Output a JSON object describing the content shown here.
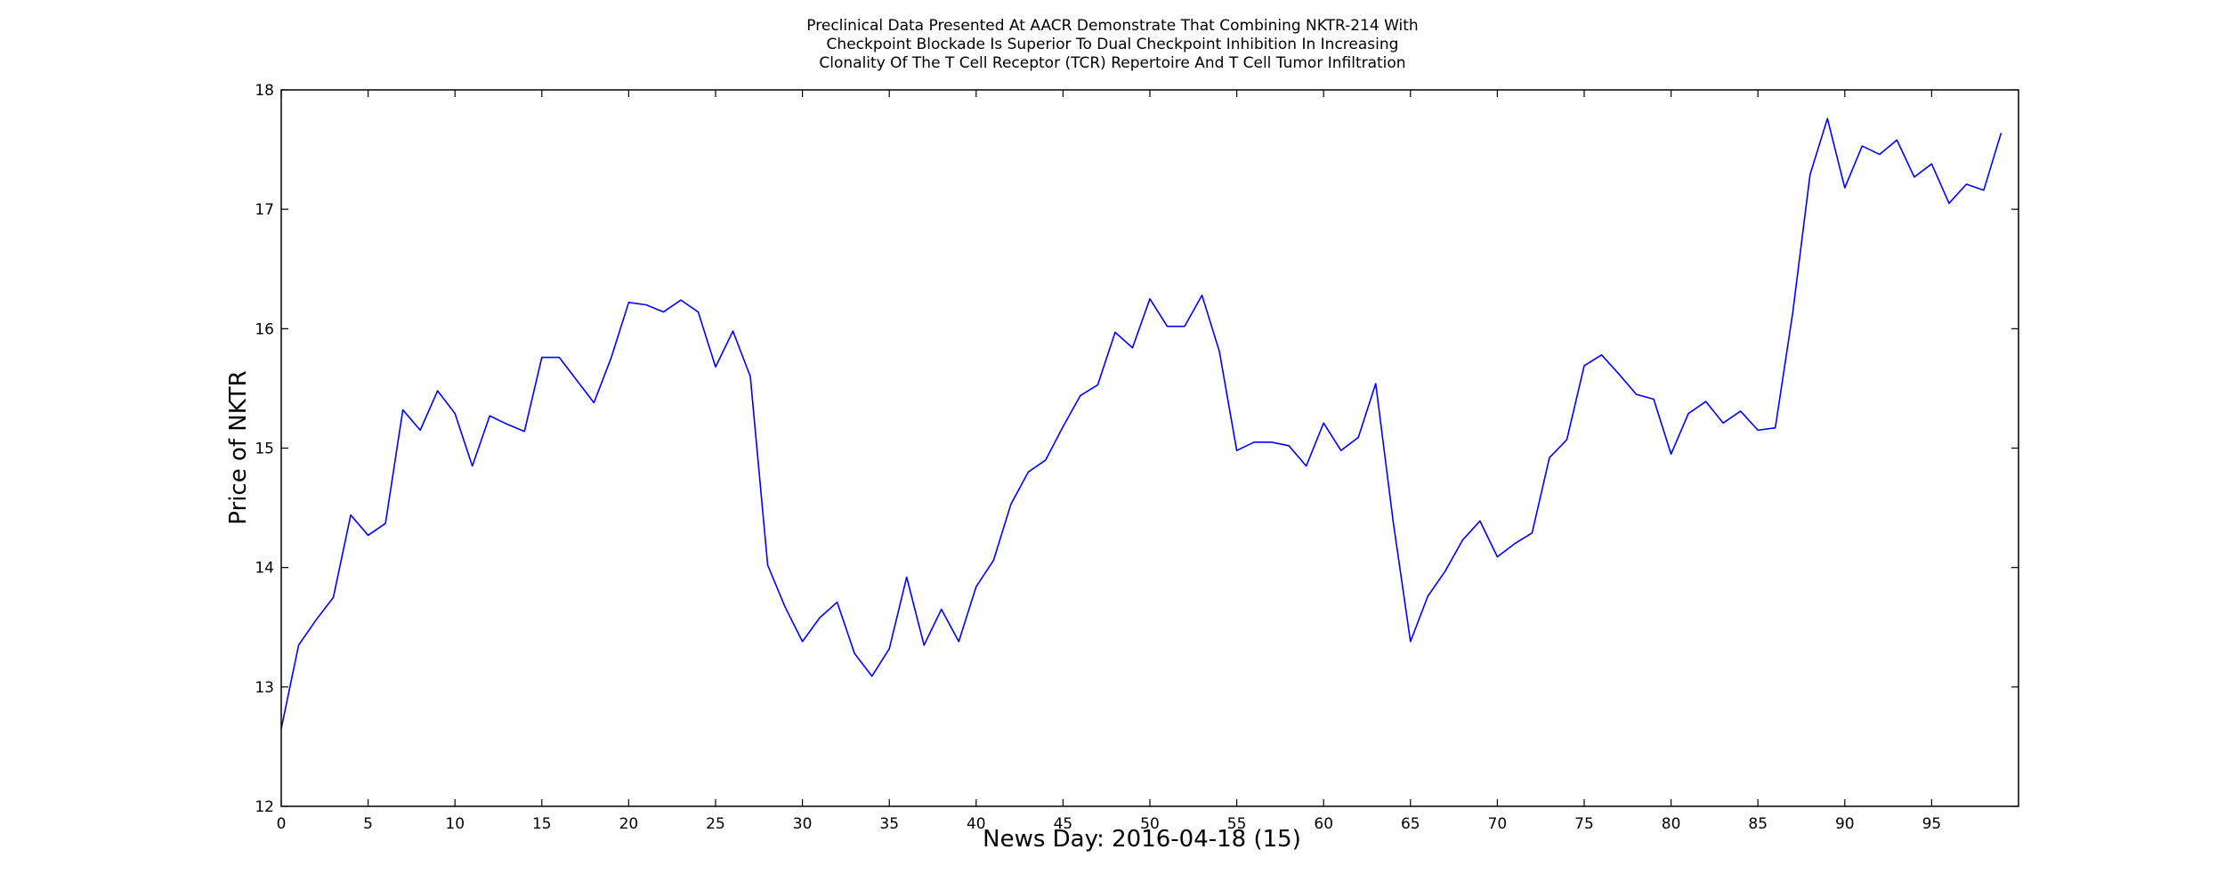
{
  "chart_data": {
    "type": "line",
    "title_lines": [
      "Preclinical Data Presented At AACR Demonstrate That Combining NKTR-214 With",
      "Checkpoint Blockade Is Superior To Dual Checkpoint Inhibition In Increasing",
      "Clonality Of The T Cell Receptor (TCR) Repertoire And T Cell Tumor Infiltration"
    ],
    "xlabel": "News Day: 2016-04-18 (15)",
    "ylabel": "Price of NKTR",
    "xlim": [
      0,
      100
    ],
    "ylim": [
      12,
      18
    ],
    "x_ticks": [
      0,
      5,
      10,
      15,
      20,
      25,
      30,
      35,
      40,
      45,
      50,
      55,
      60,
      65,
      70,
      75,
      80,
      85,
      90,
      95
    ],
    "x_tick_labels": [
      "0",
      "5",
      "10",
      "15",
      "20",
      "25",
      "30",
      "35",
      "40",
      "45",
      "50",
      "55",
      "60",
      "65",
      "70",
      "75",
      "80",
      "85",
      "90",
      "95"
    ],
    "y_ticks": [
      12,
      13,
      14,
      15,
      16,
      17,
      18
    ],
    "y_tick_labels": [
      "12",
      "13",
      "14",
      "15",
      "16",
      "17",
      "18"
    ],
    "grid": false,
    "line_color": "#0000ff",
    "series": [
      {
        "values": [
          12.65,
          13.35,
          13.56,
          13.75,
          14.44,
          14.27,
          14.37,
          15.32,
          15.15,
          15.48,
          15.29,
          14.85,
          15.27,
          15.2,
          15.14,
          15.76,
          15.76,
          15.57,
          15.38,
          15.76,
          16.22,
          16.2,
          16.14,
          16.24,
          16.14,
          15.68,
          15.98,
          15.6,
          14.02,
          13.67,
          13.38,
          13.58,
          13.71,
          13.28,
          13.09,
          13.32,
          13.92,
          13.35,
          13.65,
          13.38,
          13.84,
          14.06,
          14.53,
          14.8,
          14.9,
          15.18,
          15.44,
          15.53,
          15.97,
          15.84,
          16.25,
          16.02,
          16.02,
          16.28,
          15.81,
          14.98,
          15.05,
          15.05,
          15.02,
          14.85,
          15.21,
          14.98,
          15.09,
          15.54,
          14.39,
          13.38,
          13.76,
          13.97,
          14.23,
          14.39,
          14.09,
          14.2,
          14.29,
          14.92,
          15.07,
          15.69,
          15.78,
          15.62,
          15.45,
          15.41,
          14.95,
          15.29,
          15.39,
          15.21,
          15.31,
          15.15,
          15.17,
          16.13,
          17.29,
          17.76,
          17.18,
          17.53,
          17.46,
          17.58,
          17.27,
          17.38,
          17.05,
          17.21,
          17.16,
          17.64
        ]
      }
    ]
  }
}
